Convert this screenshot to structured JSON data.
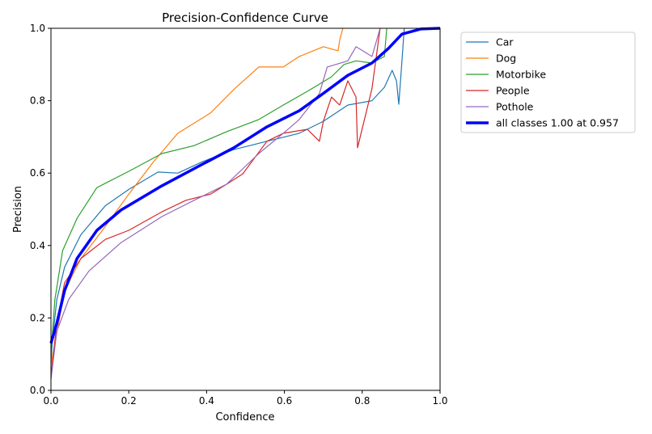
{
  "chart_data": {
    "type": "line",
    "title": "Precision-Confidence Curve",
    "xlabel": "Confidence",
    "ylabel": "Precision",
    "xlim": [
      0,
      1
    ],
    "ylim": [
      0,
      1
    ],
    "xticks": [
      "0.0",
      "0.2",
      "0.4",
      "0.6",
      "0.8",
      "1.0"
    ],
    "yticks": [
      "0.0",
      "0.2",
      "0.4",
      "0.6",
      "0.8",
      "1.0"
    ],
    "grid": false,
    "legend_position": "outside-top-right",
    "series": [
      {
        "name": "Car",
        "color": "#1f77b4",
        "width": "thin",
        "x": [
          0,
          0.004,
          0.015,
          0.035,
          0.077,
          0.14,
          0.2,
          0.275,
          0.326,
          0.39,
          0.47,
          0.555,
          0.638,
          0.7,
          0.763,
          0.825,
          0.857,
          0.877,
          0.888,
          0.894,
          0.902,
          0.908
        ],
        "y": [
          0.08,
          0.14,
          0.25,
          0.34,
          0.43,
          0.51,
          0.555,
          0.603,
          0.6,
          0.632,
          0.665,
          0.688,
          0.71,
          0.743,
          0.788,
          0.8,
          0.837,
          0.884,
          0.855,
          0.79,
          0.91,
          1.0
        ]
      },
      {
        "name": "Dog",
        "color": "#ff7f0e",
        "width": "thin",
        "x": [
          0,
          0.035,
          0.077,
          0.14,
          0.2,
          0.264,
          0.326,
          0.41,
          0.472,
          0.534,
          0.597,
          0.638,
          0.7,
          0.738,
          0.742,
          0.75
        ],
        "y": [
          0.07,
          0.275,
          0.364,
          0.453,
          0.542,
          0.632,
          0.71,
          0.766,
          0.833,
          0.893,
          0.893,
          0.922,
          0.949,
          0.938,
          0.967,
          1.0
        ]
      },
      {
        "name": "Motorbike",
        "color": "#2ca02c",
        "width": "thin",
        "x": [
          0,
          0.01,
          0.03,
          0.067,
          0.118,
          0.2,
          0.285,
          0.368,
          0.451,
          0.534,
          0.597,
          0.659,
          0.721,
          0.753,
          0.784,
          0.825,
          0.857,
          0.863
        ],
        "y": [
          0.1,
          0.25,
          0.386,
          0.475,
          0.56,
          0.605,
          0.654,
          0.676,
          0.714,
          0.748,
          0.788,
          0.826,
          0.866,
          0.9,
          0.91,
          0.904,
          0.922,
          1.0
        ]
      },
      {
        "name": "People",
        "color": "#d62728",
        "width": "thin",
        "x": [
          0,
          0.015,
          0.035,
          0.077,
          0.14,
          0.2,
          0.285,
          0.347,
          0.41,
          0.451,
          0.493,
          0.555,
          0.597,
          0.659,
          0.69,
          0.7,
          0.721,
          0.742,
          0.763,
          0.784,
          0.788,
          0.825,
          0.846
        ],
        "y": [
          0.04,
          0.185,
          0.297,
          0.364,
          0.417,
          0.442,
          0.493,
          0.525,
          0.542,
          0.569,
          0.598,
          0.688,
          0.71,
          0.721,
          0.688,
          0.743,
          0.81,
          0.788,
          0.855,
          0.81,
          0.67,
          0.833,
          1.0
        ]
      },
      {
        "name": "Pothole",
        "color": "#9467bd",
        "width": "thin",
        "x": [
          0,
          0.015,
          0.046,
          0.098,
          0.18,
          0.285,
          0.368,
          0.451,
          0.534,
          0.597,
          0.638,
          0.69,
          0.71,
          0.763,
          0.784,
          0.825,
          0.846
        ],
        "y": [
          0.03,
          0.163,
          0.252,
          0.33,
          0.408,
          0.48,
          0.525,
          0.569,
          0.654,
          0.71,
          0.748,
          0.82,
          0.893,
          0.91,
          0.949,
          0.922,
          1.0
        ]
      },
      {
        "name": "all classes 1.00 at 0.957",
        "color": "#0000ff",
        "width": "thick",
        "x": [
          0,
          0.015,
          0.035,
          0.067,
          0.118,
          0.18,
          0.285,
          0.39,
          0.47,
          0.555,
          0.638,
          0.7,
          0.763,
          0.825,
          0.867,
          0.902,
          0.95,
          1.0
        ],
        "y": [
          0.13,
          0.185,
          0.275,
          0.364,
          0.442,
          0.498,
          0.565,
          0.625,
          0.67,
          0.728,
          0.772,
          0.82,
          0.87,
          0.904,
          0.944,
          0.984,
          0.998,
          1.0
        ]
      }
    ]
  }
}
